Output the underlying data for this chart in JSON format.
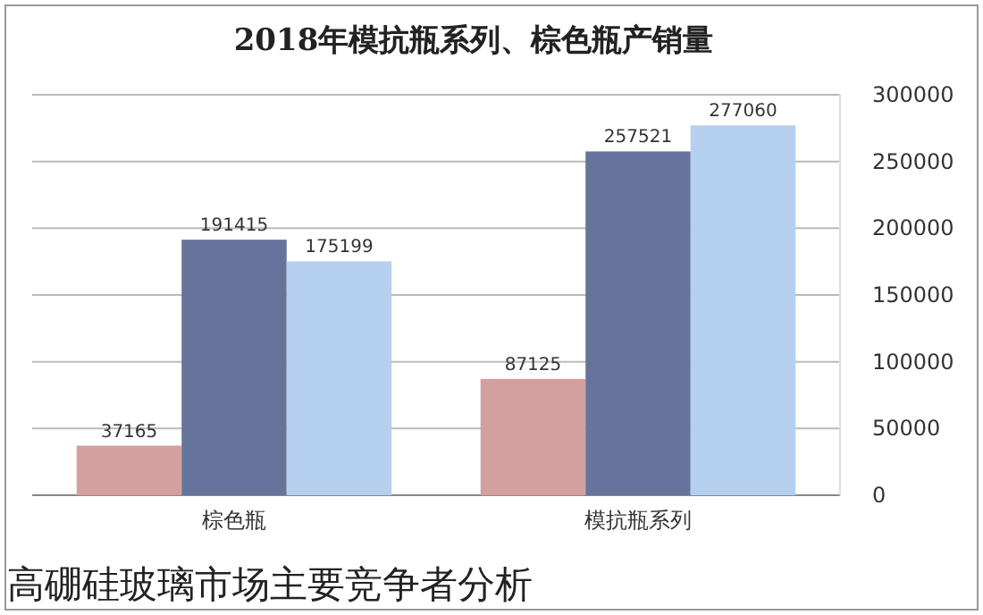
{
  "chart_data": {
    "type": "bar",
    "title": "2018年模抗瓶系列、棕色瓶产销量",
    "categories": [
      "棕色瓶",
      "模抗瓶系列"
    ],
    "series": [
      {
        "color": "#d4a09f",
        "values": [
          37165,
          87125
        ]
      },
      {
        "color": "#66739b",
        "values": [
          191415,
          257521
        ]
      },
      {
        "color": "#b5d0ee",
        "values": [
          175199,
          277060
        ]
      }
    ],
    "ylim": [
      0,
      300000
    ],
    "yticks": [
      0,
      50000,
      100000,
      150000,
      200000,
      250000,
      300000
    ],
    "grid": "y",
    "data_labels": true,
    "annotations": [
      "高硼硅玻璃市场主要竞争者分析"
    ]
  }
}
